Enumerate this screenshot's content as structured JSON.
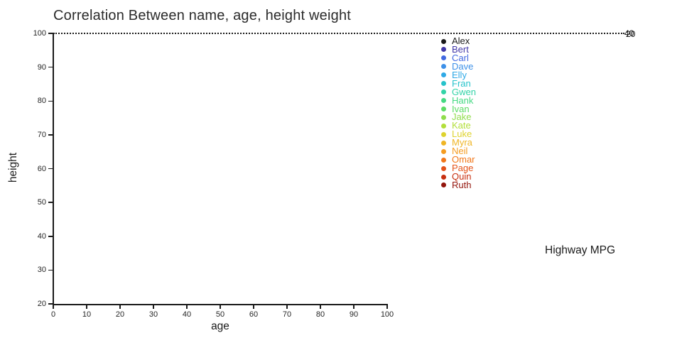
{
  "chart_data": {
    "type": "scatter",
    "title": "Correlation Between name, age, height weight",
    "xlabel": "age",
    "ylabel": "height",
    "xlim": [
      0,
      100
    ],
    "ylim": [
      20,
      100
    ],
    "xticks": [
      "0",
      "10",
      "20",
      "30",
      "40",
      "50",
      "60",
      "70",
      "80",
      "90",
      "100"
    ],
    "yticks": [
      "100",
      "90",
      "80",
      "70",
      "60",
      "50",
      "40",
      "30",
      "20"
    ],
    "grid": false,
    "legend_position": "right-top-inside",
    "series": [
      {
        "name": "Alex",
        "color": "#1a1a1a",
        "points": []
      },
      {
        "name": "Bert",
        "color": "#4238a8",
        "points": []
      },
      {
        "name": "Carl",
        "color": "#4169e1",
        "points": []
      },
      {
        "name": "Dave",
        "color": "#3d90e8",
        "points": []
      },
      {
        "name": "Elly",
        "color": "#2fa9e6",
        "points": []
      },
      {
        "name": "Fran",
        "color": "#27c3cb",
        "points": []
      },
      {
        "name": "Gwen",
        "color": "#33d3a7",
        "points": []
      },
      {
        "name": "Hank",
        "color": "#46d983",
        "points": []
      },
      {
        "name": "Ivan",
        "color": "#5cdc64",
        "points": []
      },
      {
        "name": "Jake",
        "color": "#90dd4c",
        "points": []
      },
      {
        "name": "Kate",
        "color": "#b2df3a",
        "points": []
      },
      {
        "name": "Luke",
        "color": "#ded32f",
        "points": []
      },
      {
        "name": "Myra",
        "color": "#efb525",
        "points": []
      },
      {
        "name": "Neil",
        "color": "#f59c20",
        "points": []
      },
      {
        "name": "Omar",
        "color": "#f17719",
        "points": []
      },
      {
        "name": "Page",
        "color": "#e4531a",
        "points": []
      },
      {
        "name": "Quin",
        "color": "#c72f10",
        "points": []
      },
      {
        "name": "Ruth",
        "color": "#93150c",
        "points": []
      }
    ],
    "annotations": {
      "dotted_line": {
        "y": 100,
        "style": "dotted",
        "color": "#1a1a1a"
      },
      "line_end_labels": [
        "40",
        "20"
      ],
      "secondary_legend_title": "Highway MPG"
    }
  }
}
